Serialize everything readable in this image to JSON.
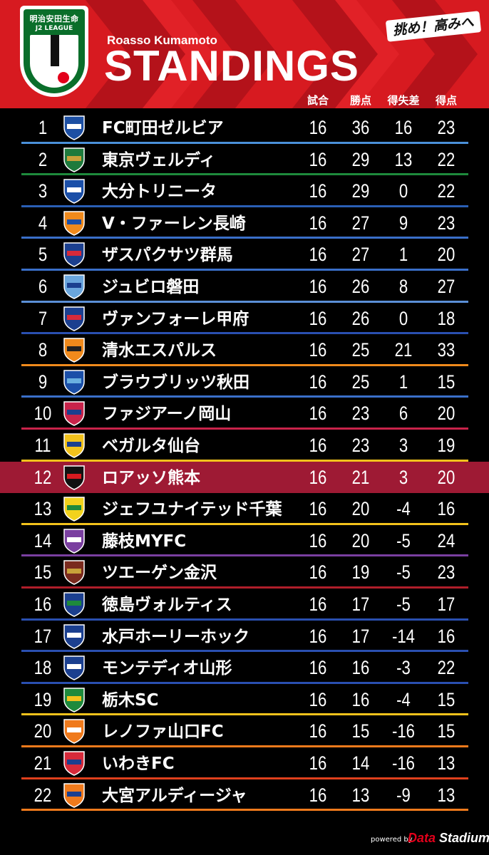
{
  "header": {
    "team_subtitle": "Roasso Kumamoto",
    "title": "STANDINGS",
    "slogan": "挑め！高みへ",
    "logo_sponsor": "明治安田生命",
    "logo_league": "J2 LEAGUE",
    "columns": [
      "試合",
      "勝点",
      "得失差",
      "得点"
    ],
    "colors": {
      "header_red": "#d71a20",
      "stripe": "#b4121a",
      "highlight_row": "#9e1a34"
    }
  },
  "standings": [
    {
      "rank": "1",
      "team": "FC町田ゼルビア",
      "played": "16",
      "points": "36",
      "gd": "16",
      "goals": "23",
      "line_color": "#4a90d9",
      "crest_colors": [
        "#1d4fa3",
        "#ffffff"
      ]
    },
    {
      "rank": "2",
      "team": "東京ヴェルディ",
      "played": "16",
      "points": "29",
      "gd": "13",
      "goals": "22",
      "line_color": "#1e8a3c",
      "crest_colors": [
        "#1e7a3c",
        "#c8a13a"
      ]
    },
    {
      "rank": "3",
      "team": "大分トリニータ",
      "played": "16",
      "points": "29",
      "gd": "0",
      "goals": "22",
      "line_color": "#2a5fb5",
      "crest_colors": [
        "#1b4fa8",
        "#ffffff"
      ]
    },
    {
      "rank": "4",
      "team": "V・ファーレン長崎",
      "played": "16",
      "points": "27",
      "gd": "9",
      "goals": "23",
      "line_color": "#3a6fc9",
      "crest_colors": [
        "#f08a1c",
        "#1b4fa8"
      ]
    },
    {
      "rank": "5",
      "team": "ザスパクサツ群馬",
      "played": "16",
      "points": "27",
      "gd": "1",
      "goals": "20",
      "line_color": "#3a6fc9",
      "crest_colors": [
        "#1b3f8f",
        "#d72a3a"
      ]
    },
    {
      "rank": "6",
      "team": "ジュビロ磐田",
      "played": "16",
      "points": "26",
      "gd": "8",
      "goals": "27",
      "line_color": "#5a8fd6",
      "crest_colors": [
        "#6aa6dd",
        "#1b3f8f"
      ]
    },
    {
      "rank": "7",
      "team": "ヴァンフォーレ甲府",
      "played": "16",
      "points": "26",
      "gd": "0",
      "goals": "18",
      "line_color": "#2a4fb0",
      "crest_colors": [
        "#1b3f8f",
        "#d72a3a"
      ]
    },
    {
      "rank": "8",
      "team": "清水エスパルス",
      "played": "16",
      "points": "25",
      "gd": "21",
      "goals": "33",
      "line_color": "#f08a1c",
      "crest_colors": [
        "#f08a1c",
        "#222222"
      ]
    },
    {
      "rank": "9",
      "team": "ブラウブリッツ秋田",
      "played": "16",
      "points": "25",
      "gd": "1",
      "goals": "15",
      "line_color": "#3a6fc9",
      "crest_colors": [
        "#1b4fa8",
        "#6ab0e0"
      ]
    },
    {
      "rank": "10",
      "team": "ファジアーノ岡山",
      "played": "16",
      "points": "23",
      "gd": "6",
      "goals": "20",
      "line_color": "#c8234a",
      "crest_colors": [
        "#c8234a",
        "#1b3f8f"
      ]
    },
    {
      "rank": "11",
      "team": "ベガルタ仙台",
      "played": "16",
      "points": "23",
      "gd": "3",
      "goals": "19",
      "line_color": "#f2c21c",
      "crest_colors": [
        "#f2c21c",
        "#1b3f8f"
      ]
    },
    {
      "rank": "12",
      "team": "ロアッソ熊本",
      "played": "16",
      "points": "21",
      "gd": "3",
      "goals": "20",
      "line_color": "#9e1a34",
      "crest_colors": [
        "#111111",
        "#d71a20"
      ],
      "highlight": true
    },
    {
      "rank": "13",
      "team": "ジェフユナイテッド千葉",
      "played": "16",
      "points": "20",
      "gd": "-4",
      "goals": "16",
      "line_color": "#f2c21c",
      "crest_colors": [
        "#f2d21c",
        "#1e8a3c"
      ]
    },
    {
      "rank": "14",
      "team": "藤枝MYFC",
      "played": "16",
      "points": "20",
      "gd": "-5",
      "goals": "24",
      "line_color": "#7a3fa0",
      "crest_colors": [
        "#7a3fa0",
        "#ffffff"
      ]
    },
    {
      "rank": "15",
      "team": "ツエーゲン金沢",
      "played": "16",
      "points": "19",
      "gd": "-5",
      "goals": "23",
      "line_color": "#b01e2a",
      "crest_colors": [
        "#7a2a1e",
        "#c8a13a"
      ]
    },
    {
      "rank": "16",
      "team": "徳島ヴォルティス",
      "played": "16",
      "points": "17",
      "gd": "-5",
      "goals": "17",
      "line_color": "#2a4fb0",
      "crest_colors": [
        "#1b3f8f",
        "#1e8a3c"
      ]
    },
    {
      "rank": "17",
      "team": "水戸ホーリーホック",
      "played": "16",
      "points": "17",
      "gd": "-14",
      "goals": "16",
      "line_color": "#2a4fb0",
      "crest_colors": [
        "#1b3f8f",
        "#ffffff"
      ]
    },
    {
      "rank": "18",
      "team": "モンテディオ山形",
      "played": "16",
      "points": "16",
      "gd": "-3",
      "goals": "22",
      "line_color": "#2a4fb0",
      "crest_colors": [
        "#1b3f8f",
        "#ffffff"
      ]
    },
    {
      "rank": "19",
      "team": "栃木SC",
      "played": "16",
      "points": "16",
      "gd": "-4",
      "goals": "15",
      "line_color": "#f2c21c",
      "crest_colors": [
        "#1e8a3c",
        "#f2c21c"
      ]
    },
    {
      "rank": "20",
      "team": "レノファ山口FC",
      "played": "16",
      "points": "15",
      "gd": "-16",
      "goals": "15",
      "line_color": "#f07a1c",
      "crest_colors": [
        "#f07a1c",
        "#ffffff"
      ]
    },
    {
      "rank": "21",
      "team": "いわきFC",
      "played": "16",
      "points": "14",
      "gd": "-16",
      "goals": "13",
      "line_color": "#e0401c",
      "crest_colors": [
        "#d72a3a",
        "#1b3f8f"
      ]
    },
    {
      "rank": "22",
      "team": "大宮アルディージャ",
      "played": "16",
      "points": "13",
      "gd": "-9",
      "goals": "13",
      "line_color": "#f07a1c",
      "crest_colors": [
        "#f07a1c",
        "#1b3f8f"
      ]
    }
  ],
  "footer": {
    "powered_by": "powered by",
    "brand_prefix": "Data",
    "brand_suffix": " Stadium"
  }
}
